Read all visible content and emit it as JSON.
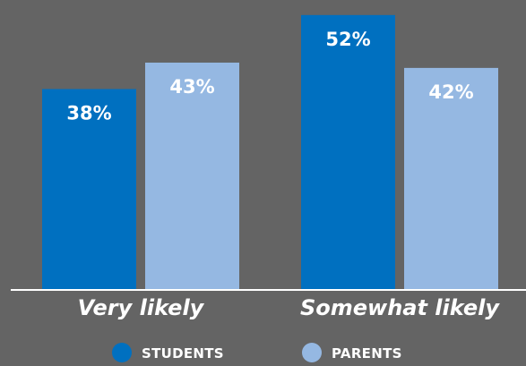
{
  "chart_data": {
    "type": "bar",
    "categories": [
      "Very likely",
      "Somewhat likely"
    ],
    "series": [
      {
        "name": "STUDENTS",
        "values": [
          38,
          52
        ],
        "labels": [
          "38%",
          "52%"
        ],
        "color": "#0070c0"
      },
      {
        "name": "PARENTS",
        "values": [
          43,
          42
        ],
        "labels": [
          "43%",
          "42%"
        ],
        "color": "#95b8e2"
      }
    ],
    "ylim": [
      0,
      54
    ],
    "grid": false,
    "legend": "bottom",
    "background": "#646464",
    "axis_color": "#ffffff"
  }
}
